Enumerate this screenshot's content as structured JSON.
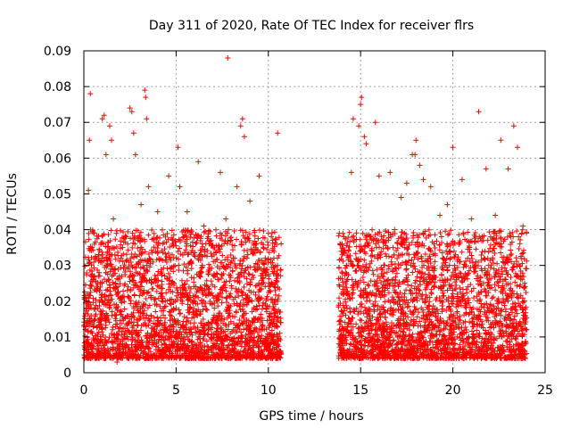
{
  "chart_data": {
    "type": "scatter",
    "title": "Day 311 of 2020, Rate Of TEC Index for receiver flrs",
    "xlabel": "GPS time / hours",
    "ylabel": "ROTI / TECUs",
    "xlim": [
      0,
      25
    ],
    "ylim": [
      0,
      0.09
    ],
    "x_ticks": [
      0,
      5,
      10,
      15,
      20,
      25
    ],
    "y_ticks": [
      0,
      0.01,
      0.02,
      0.03,
      0.04,
      0.05,
      0.06,
      0.07,
      0.08,
      0.09
    ],
    "x_tick_labels": [
      "0",
      "5",
      "10",
      "15",
      "20",
      "25"
    ],
    "y_tick_labels": [
      "0",
      "0.01",
      "0.02",
      "0.03",
      "0.04",
      "0.05",
      "0.06",
      "0.07",
      "0.08",
      "0.09"
    ],
    "grid": true,
    "marker": "plus",
    "series": [
      {
        "name": "ROTI",
        "color": "#ff0000",
        "points": [
          [
            0.1,
            0.012
          ],
          [
            0.2,
            0.022
          ],
          [
            0.25,
            0.051
          ],
          [
            0.3,
            0.065
          ],
          [
            0.35,
            0.078
          ],
          [
            0.45,
            0.035
          ],
          [
            0.6,
            0.018
          ],
          [
            0.8,
            0.009
          ],
          [
            1.0,
            0.071
          ],
          [
            1.1,
            0.072
          ],
          [
            1.2,
            0.061
          ],
          [
            1.4,
            0.069
          ],
          [
            1.5,
            0.065
          ],
          [
            1.6,
            0.043
          ],
          [
            1.8,
            0.003
          ],
          [
            2.0,
            0.021
          ],
          [
            2.1,
            0.035
          ],
          [
            2.3,
            0.038
          ],
          [
            2.5,
            0.074
          ],
          [
            2.6,
            0.073
          ],
          [
            2.7,
            0.067
          ],
          [
            2.8,
            0.061
          ],
          [
            3.1,
            0.047
          ],
          [
            3.3,
            0.079
          ],
          [
            3.35,
            0.077
          ],
          [
            3.4,
            0.071
          ],
          [
            3.5,
            0.052
          ],
          [
            4.0,
            0.045
          ],
          [
            4.6,
            0.055
          ],
          [
            5.1,
            0.063
          ],
          [
            5.2,
            0.052
          ],
          [
            5.6,
            0.045
          ],
          [
            6.2,
            0.059
          ],
          [
            6.5,
            0.041
          ],
          [
            6.8,
            0.036
          ],
          [
            7.1,
            0.024
          ],
          [
            7.4,
            0.056
          ],
          [
            7.7,
            0.043
          ],
          [
            7.8,
            0.088
          ],
          [
            8.3,
            0.052
          ],
          [
            8.5,
            0.069
          ],
          [
            8.6,
            0.071
          ],
          [
            8.7,
            0.066
          ],
          [
            9.0,
            0.048
          ],
          [
            9.5,
            0.055
          ],
          [
            10.0,
            0.039
          ],
          [
            10.3,
            0.032
          ],
          [
            10.5,
            0.067
          ],
          [
            14.0,
            0.036
          ],
          [
            14.2,
            0.028
          ],
          [
            14.5,
            0.056
          ],
          [
            14.6,
            0.071
          ],
          [
            14.9,
            0.069
          ],
          [
            15.0,
            0.075
          ],
          [
            15.05,
            0.077
          ],
          [
            15.2,
            0.066
          ],
          [
            15.3,
            0.064
          ],
          [
            15.8,
            0.07
          ],
          [
            16.0,
            0.055
          ],
          [
            16.6,
            0.056
          ],
          [
            17.2,
            0.049
          ],
          [
            17.5,
            0.053
          ],
          [
            17.8,
            0.061
          ],
          [
            17.95,
            0.061
          ],
          [
            18.0,
            0.065
          ],
          [
            18.2,
            0.058
          ],
          [
            18.4,
            0.054
          ],
          [
            18.8,
            0.052
          ],
          [
            19.3,
            0.044
          ],
          [
            19.7,
            0.047
          ],
          [
            20.0,
            0.063
          ],
          [
            20.5,
            0.054
          ],
          [
            21.0,
            0.043
          ],
          [
            21.4,
            0.073
          ],
          [
            21.8,
            0.057
          ],
          [
            22.3,
            0.044
          ],
          [
            22.6,
            0.065
          ],
          [
            23.0,
            0.057
          ],
          [
            23.3,
            0.069
          ],
          [
            23.5,
            0.063
          ],
          [
            23.8,
            0.041
          ],
          [
            24.0,
            0.012
          ]
        ],
        "extents": [
          {
            "x_range": [
              0.0,
              10.7
            ],
            "y_range": [
              0.004,
              0.04
            ]
          },
          {
            "x_range": [
              13.8,
              24.0
            ],
            "y_range": [
              0.004,
              0.04
            ]
          }
        ]
      }
    ]
  }
}
